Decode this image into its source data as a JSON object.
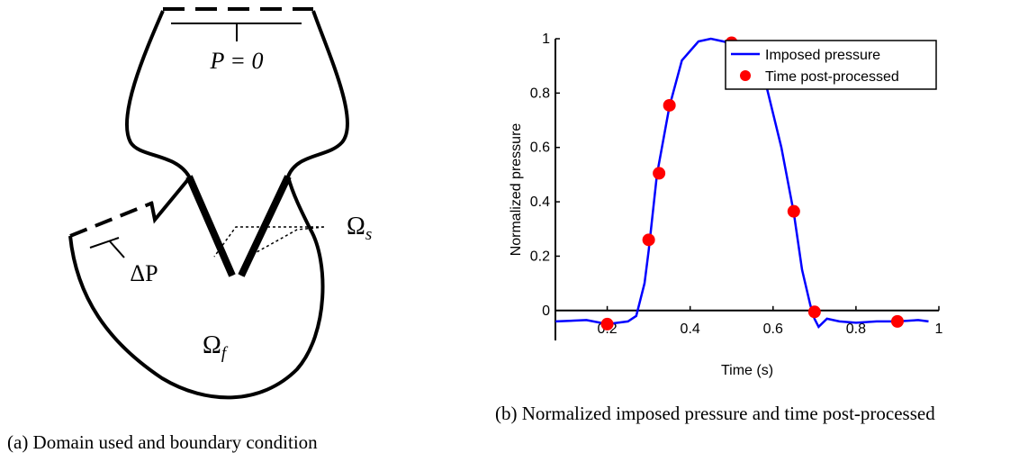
{
  "diagram": {
    "p_label": "P = 0",
    "dp_label": "ΔP",
    "omega_s": {
      "symbol": "Ω",
      "subscript": "s"
    },
    "omega_f": {
      "symbol": "Ω",
      "subscript": "f"
    },
    "caption": "(a) Domain used and boundary condition"
  },
  "chart_data": {
    "type": "line",
    "caption": "(b) Normalized imposed pressure and time post-processed",
    "xlabel": "Time (s)",
    "ylabel": "Normalized pressure",
    "xlim": [
      0.075,
      1
    ],
    "ylim": [
      -0.11,
      1
    ],
    "xticks": [
      0.2,
      0.4,
      0.6,
      0.8,
      1
    ],
    "yticks": [
      0,
      0.2,
      0.4,
      0.6,
      0.8,
      1
    ],
    "legend": "upper right",
    "series": [
      {
        "name": "Imposed pressure",
        "color": "#0000ff",
        "mode": "line",
        "x": [
          0.075,
          0.15,
          0.2,
          0.25,
          0.27,
          0.29,
          0.3,
          0.32,
          0.35,
          0.38,
          0.42,
          0.45,
          0.48,
          0.52,
          0.55,
          0.58,
          0.62,
          0.65,
          0.67,
          0.69,
          0.7,
          0.71,
          0.73,
          0.76,
          0.8,
          0.85,
          0.9,
          0.95,
          0.975
        ],
        "values": [
          -0.04,
          -0.035,
          -0.05,
          -0.04,
          -0.02,
          0.1,
          0.22,
          0.5,
          0.75,
          0.92,
          0.99,
          1.0,
          0.99,
          0.97,
          0.95,
          0.85,
          0.6,
          0.36,
          0.15,
          0.02,
          -0.03,
          -0.06,
          -0.03,
          -0.04,
          -0.045,
          -0.04,
          -0.04,
          -0.035,
          -0.04
        ]
      },
      {
        "name": "Time post-processed",
        "color": "#ff0000",
        "mode": "markers",
        "x": [
          0.2,
          0.3,
          0.325,
          0.35,
          0.5,
          0.65,
          0.7,
          0.9
        ],
        "values": [
          -0.05,
          0.26,
          0.505,
          0.755,
          0.985,
          0.365,
          -0.005,
          -0.04
        ]
      }
    ]
  }
}
